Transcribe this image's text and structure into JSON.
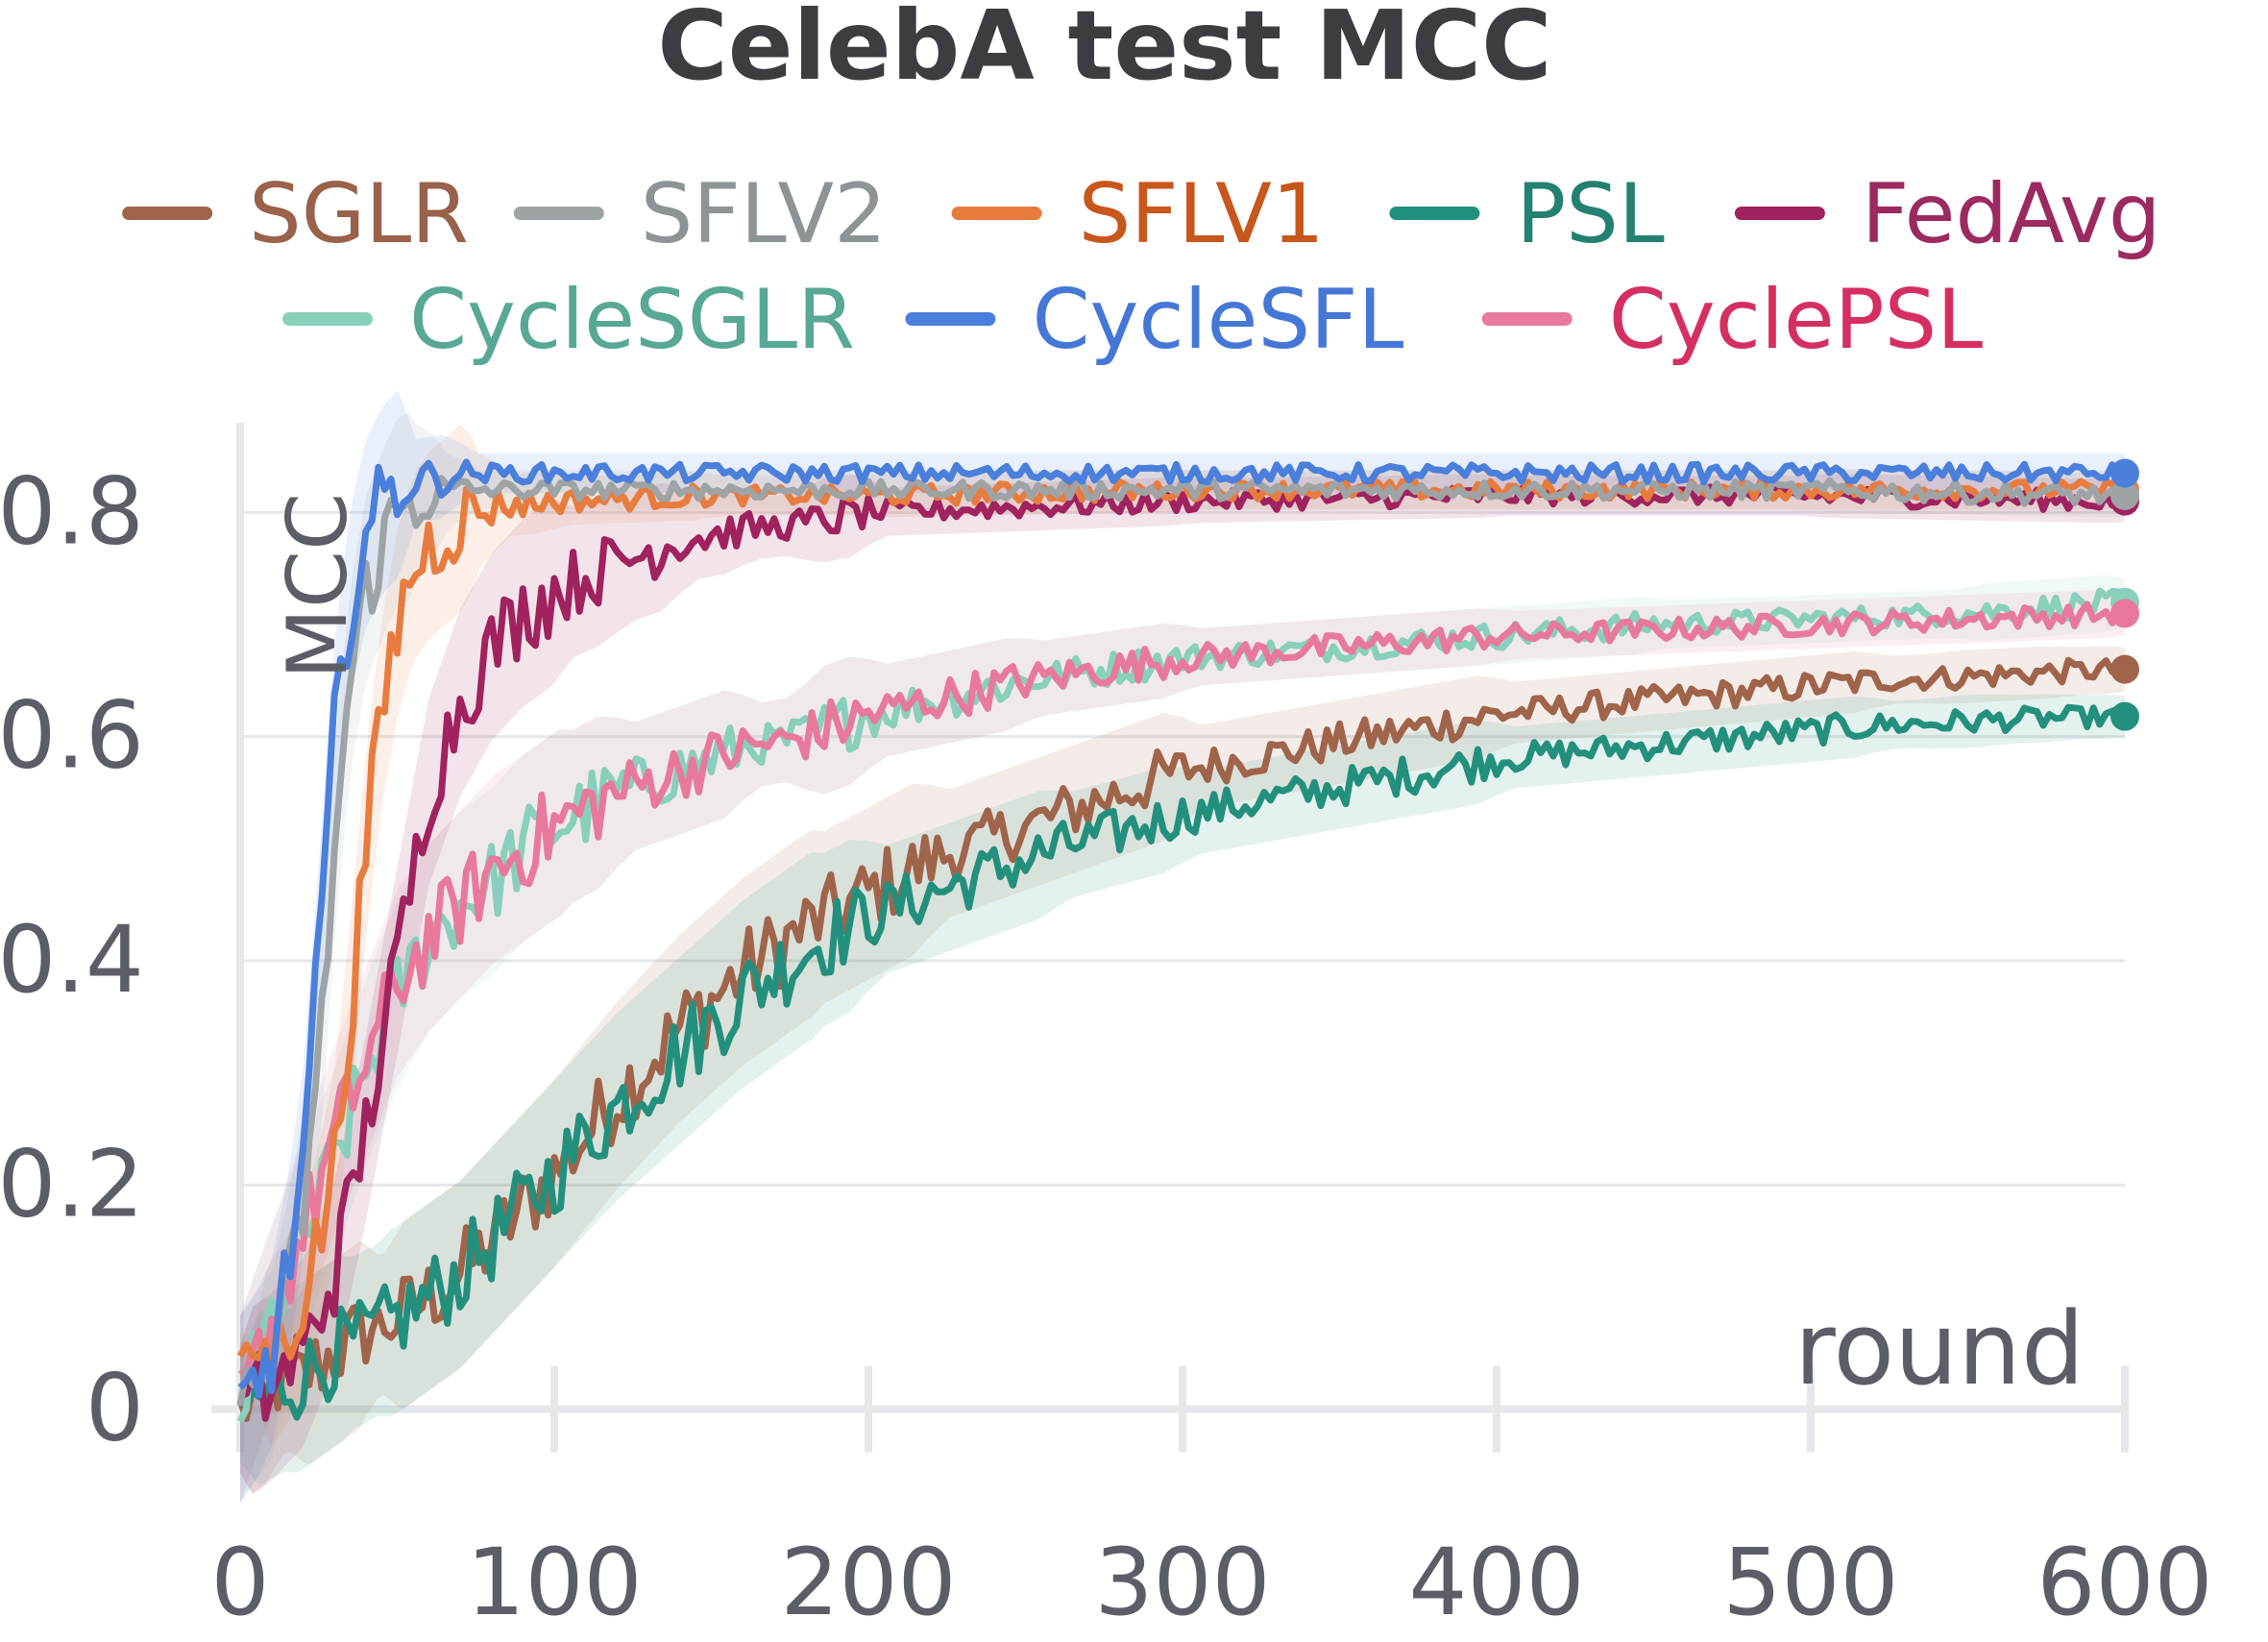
{
  "chart_data": {
    "type": "line",
    "title": "CelebA test MCC",
    "xlabel": "round",
    "ylabel": "MCC",
    "xlim": [
      0,
      600
    ],
    "ylim": [
      -0.02,
      0.88
    ],
    "x_ticks": [
      0,
      100,
      200,
      300,
      400,
      500,
      600
    ],
    "y_ticks": [
      0,
      0.2,
      0.4,
      0.6,
      0.8
    ],
    "x_tick_labels": [
      "0",
      "100",
      "200",
      "300",
      "400",
      "500",
      "600"
    ],
    "y_tick_labels": [
      "0",
      "0.2",
      "0.4",
      "0.6",
      "0.8"
    ],
    "grid": true,
    "legend_position": "top",
    "series": [
      {
        "name": "SGLR",
        "color": "#a0644a",
        "text_color": "#9a624b",
        "x": [
          0,
          10,
          20,
          30,
          40,
          50,
          60,
          70,
          80,
          90,
          100,
          120,
          140,
          160,
          180,
          200,
          220,
          240,
          260,
          280,
          300,
          320,
          340,
          360,
          380,
          400,
          420,
          440,
          460,
          480,
          500,
          520,
          540,
          560,
          580,
          600
        ],
        "y": [
          0.0,
          0.02,
          0.03,
          0.05,
          0.07,
          0.08,
          0.1,
          0.12,
          0.15,
          0.18,
          0.21,
          0.28,
          0.34,
          0.39,
          0.43,
          0.46,
          0.49,
          0.51,
          0.53,
          0.55,
          0.57,
          0.58,
          0.59,
          0.6,
          0.61,
          0.62,
          0.625,
          0.63,
          0.635,
          0.64,
          0.645,
          0.65,
          0.652,
          0.655,
          0.658,
          0.66
        ]
      },
      {
        "name": "SFLV2",
        "color": "#9ea3a5",
        "text_color": "#8e9396",
        "x": [
          0,
          5,
          10,
          15,
          20,
          25,
          30,
          35,
          40,
          45,
          50,
          60,
          70,
          80,
          100,
          150,
          200,
          300,
          400,
          500,
          600
        ],
        "y": [
          0.0,
          0.02,
          0.04,
          0.1,
          0.18,
          0.3,
          0.5,
          0.65,
          0.73,
          0.77,
          0.8,
          0.815,
          0.82,
          0.82,
          0.82,
          0.82,
          0.82,
          0.82,
          0.82,
          0.82,
          0.815
        ]
      },
      {
        "name": "SFLV1",
        "color": "#e87c3e",
        "text_color": "#c8571c",
        "x": [
          0,
          5,
          10,
          15,
          20,
          25,
          30,
          35,
          40,
          45,
          50,
          55,
          60,
          70,
          80,
          100,
          150,
          200,
          300,
          400,
          500,
          600
        ],
        "y": [
          0.05,
          0.05,
          0.05,
          0.07,
          0.1,
          0.15,
          0.22,
          0.35,
          0.5,
          0.62,
          0.7,
          0.75,
          0.77,
          0.795,
          0.805,
          0.81,
          0.815,
          0.815,
          0.82,
          0.82,
          0.82,
          0.82
        ]
      },
      {
        "name": "PSL",
        "color": "#23907d",
        "text_color": "#238171",
        "x": [
          0,
          10,
          20,
          30,
          40,
          50,
          60,
          70,
          80,
          90,
          100,
          120,
          140,
          160,
          180,
          200,
          220,
          240,
          260,
          280,
          300,
          320,
          340,
          360,
          380,
          400,
          420,
          440,
          460,
          480,
          500,
          520,
          540,
          560,
          580,
          600
        ],
        "y": [
          0.0,
          0.015,
          0.03,
          0.05,
          0.065,
          0.08,
          0.1,
          0.12,
          0.15,
          0.18,
          0.21,
          0.27,
          0.32,
          0.37,
          0.41,
          0.44,
          0.46,
          0.48,
          0.5,
          0.515,
          0.53,
          0.54,
          0.55,
          0.56,
          0.57,
          0.58,
          0.585,
          0.59,
          0.595,
          0.6,
          0.605,
          0.61,
          0.612,
          0.615,
          0.617,
          0.618
        ]
      },
      {
        "name": "FedAvg",
        "color": "#a0225e",
        "text_color": "#9b2a60",
        "x": [
          0,
          10,
          20,
          30,
          40,
          50,
          60,
          70,
          80,
          90,
          100,
          120,
          140,
          160,
          180,
          200,
          250,
          300,
          400,
          500,
          600
        ],
        "y": [
          0.0,
          0.02,
          0.05,
          0.12,
          0.25,
          0.4,
          0.55,
          0.63,
          0.68,
          0.71,
          0.73,
          0.755,
          0.775,
          0.785,
          0.79,
          0.8,
          0.805,
          0.81,
          0.815,
          0.815,
          0.81
        ]
      },
      {
        "name": "CycleSGLR",
        "color": "#88d0bc",
        "text_color": "#57a894",
        "x": [
          0,
          10,
          20,
          30,
          40,
          50,
          60,
          70,
          80,
          90,
          100,
          120,
          140,
          160,
          180,
          200,
          250,
          300,
          350,
          400,
          450,
          500,
          550,
          600
        ],
        "y": [
          0.0,
          0.08,
          0.15,
          0.22,
          0.3,
          0.37,
          0.42,
          0.45,
          0.47,
          0.5,
          0.52,
          0.55,
          0.57,
          0.59,
          0.6,
          0.62,
          0.65,
          0.67,
          0.68,
          0.69,
          0.7,
          0.705,
          0.71,
          0.72
        ]
      },
      {
        "name": "CycleSFL",
        "color": "#4a7fdc",
        "text_color": "#4577d6",
        "x": [
          0,
          5,
          10,
          15,
          20,
          25,
          30,
          35,
          40,
          45,
          50,
          60,
          70,
          80,
          100,
          150,
          200,
          300,
          400,
          500,
          600
        ],
        "y": [
          0.0,
          0.02,
          0.05,
          0.12,
          0.22,
          0.4,
          0.6,
          0.72,
          0.78,
          0.81,
          0.825,
          0.83,
          0.835,
          0.835,
          0.835,
          0.835,
          0.835,
          0.835,
          0.835,
          0.835,
          0.835
        ]
      },
      {
        "name": "CyclePSL",
        "color": "#e8799d",
        "text_color": "#d52f62",
        "x": [
          0,
          10,
          20,
          30,
          40,
          50,
          60,
          70,
          80,
          90,
          100,
          120,
          140,
          160,
          180,
          200,
          250,
          300,
          350,
          400,
          450,
          500,
          550,
          600
        ],
        "y": [
          0.0,
          0.08,
          0.16,
          0.24,
          0.31,
          0.38,
          0.42,
          0.45,
          0.48,
          0.5,
          0.52,
          0.55,
          0.57,
          0.59,
          0.6,
          0.62,
          0.65,
          0.67,
          0.68,
          0.69,
          0.695,
          0.7,
          0.705,
          0.71
        ]
      }
    ]
  }
}
